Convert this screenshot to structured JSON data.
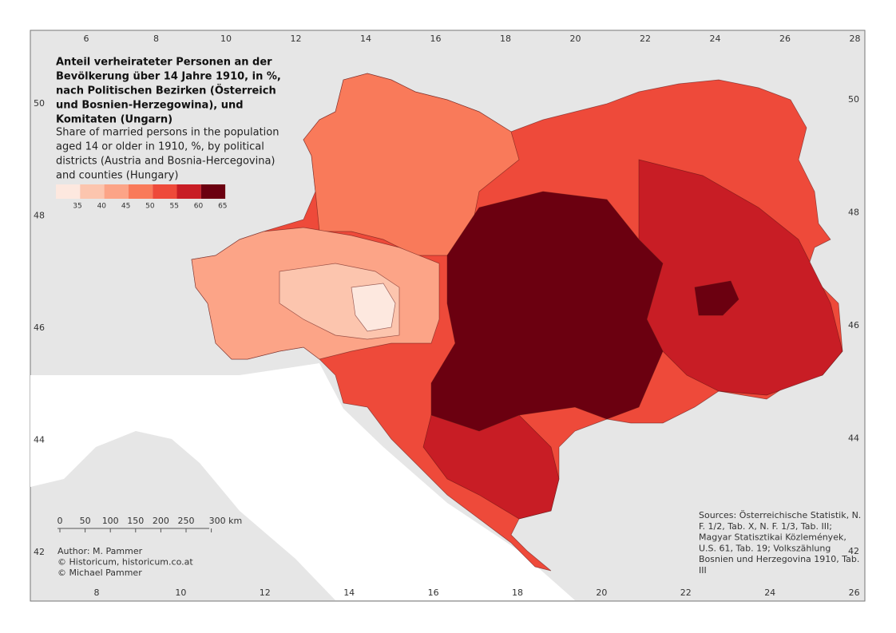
{
  "title_de": [
    "Anteil verheirateter Personen an der",
    "Bevölkerung über 14 Jahre 1910, in %,",
    "nach Politischen Bezirken (Österreich",
    "und Bosnien-Herzegowina), und",
    "Komitaten (Ungarn)"
  ],
  "title_en": [
    "Share of married persons in the population",
    "aged 14 or older in 1910, %, by political",
    "districts (Austria and Bosnia-Hercegovina)",
    "and counties (Hungary)"
  ],
  "legend": {
    "colors": [
      "#fde8df",
      "#fcc5ae",
      "#fca487",
      "#f97a5a",
      "#ee4a3a",
      "#c81d25",
      "#6b0010"
    ],
    "labels": [
      35,
      40,
      45,
      50,
      55,
      60,
      65
    ]
  },
  "scale_bar": [
    "0",
    "50",
    "100",
    "150",
    "200",
    "250",
    "300 km"
  ],
  "author": [
    "Author: M. Pammer",
    "© Historicum, historicum.co.at",
    "© Michael Pammer"
  ],
  "sources": [
    "Sources: Österreichische Statistik, N.",
    "F. 1/2, Tab. X, N. F. 1/3, Tab. III;",
    "Magyar Statisztikai Közlemények,",
    "U.S. 61, Tab. 19; Volkszählung",
    "Bosnien und Herzegovina 1910, Tab.",
    "III"
  ],
  "frame": {
    "top": [
      6,
      8,
      10,
      12,
      14,
      16,
      18,
      20,
      22,
      24,
      26,
      28
    ],
    "bottom": [
      8,
      10,
      12,
      14,
      16,
      18,
      20,
      22,
      24,
      26
    ],
    "left": [
      50,
      48,
      46,
      44,
      42
    ],
    "right": [
      50,
      48,
      46,
      44,
      42
    ]
  }
}
